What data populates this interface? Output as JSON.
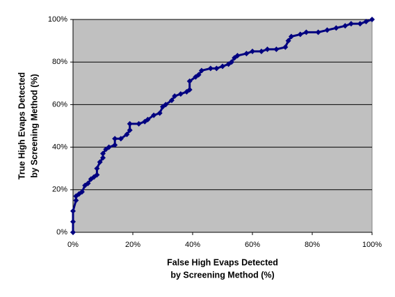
{
  "chart_data": {
    "type": "line",
    "color": "#000080",
    "x": [
      0,
      0,
      0,
      1,
      1,
      2,
      3,
      4,
      5,
      6,
      7,
      8,
      8,
      9,
      10,
      10,
      11,
      12,
      14,
      14,
      16,
      18,
      19,
      19,
      22,
      24,
      25,
      27,
      29,
      30,
      31,
      33,
      34,
      36,
      38,
      39,
      39,
      41,
      42,
      43,
      46,
      48,
      50,
      52,
      53,
      54,
      55,
      58,
      60,
      63,
      65,
      68,
      71,
      72,
      73,
      76,
      78,
      82,
      85,
      88,
      91,
      93,
      96,
      98,
      100
    ],
    "values": [
      0,
      5,
      10,
      15,
      17,
      18,
      19,
      22,
      23,
      25,
      26,
      27,
      30,
      33,
      35,
      37,
      39,
      40,
      41,
      44,
      44,
      46,
      48,
      51,
      51,
      52,
      53,
      55,
      56,
      59,
      60,
      62,
      64,
      65,
      66,
      67,
      71,
      73,
      74,
      76,
      77,
      77,
      78,
      79,
      80,
      82,
      83,
      84,
      85,
      85,
      86,
      86,
      87,
      90,
      92,
      93,
      94,
      94,
      95,
      96,
      97,
      98,
      98,
      99,
      100
    ],
    "xlim": [
      0,
      100
    ],
    "ylim": [
      0,
      100
    ],
    "xticks": [
      {
        "value": 0,
        "label": "0%"
      },
      {
        "value": 20,
        "label": "20%"
      },
      {
        "value": 40,
        "label": "40%"
      },
      {
        "value": 60,
        "label": "60%"
      },
      {
        "value": 80,
        "label": "80%"
      },
      {
        "value": 100,
        "label": "100%"
      }
    ],
    "yticks": [
      {
        "value": 0,
        "label": "0%"
      },
      {
        "value": 20,
        "label": "20%"
      },
      {
        "value": 40,
        "label": "40%"
      },
      {
        "value": 60,
        "label": "60%"
      },
      {
        "value": 80,
        "label": "80%"
      },
      {
        "value": 100,
        "label": "100%"
      }
    ],
    "x_label": [
      "False High Evaps Detected",
      "by Screening Method (%)"
    ],
    "y_label": [
      "True High Evaps Detected",
      "by Screening Method (%)"
    ],
    "grid": true,
    "plot_background": "#c0c0c0"
  }
}
